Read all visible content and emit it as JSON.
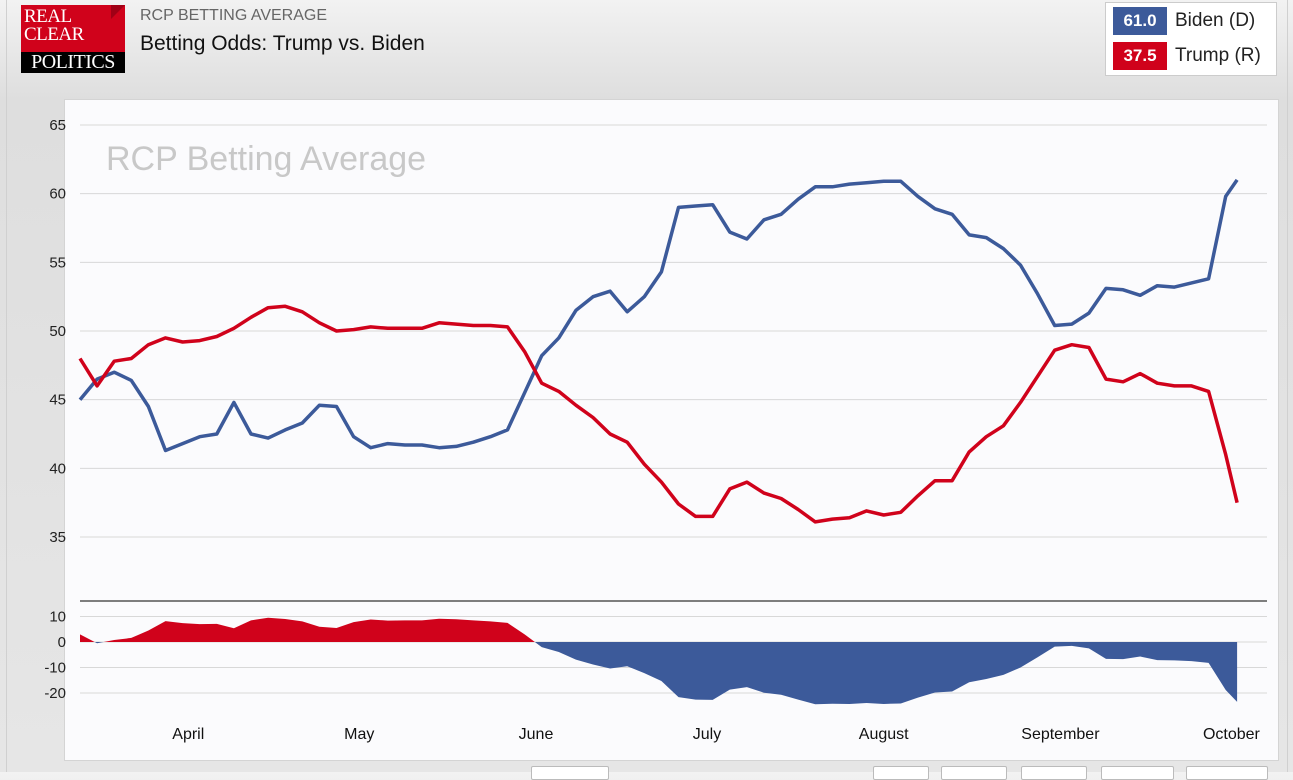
{
  "header": {
    "kicker": "RCP BETTING AVERAGE",
    "title": "Betting Odds: Trump vs. Biden",
    "logo_text": [
      "REAL",
      "CLEAR",
      "POLITICS"
    ]
  },
  "legend": [
    {
      "value": "61.0",
      "name": "Biden (D)",
      "color": "#3c5a9a"
    },
    {
      "value": "37.5",
      "name": "Trump (R)",
      "color": "#d0021b"
    }
  ],
  "colors": {
    "biden": "#3c5a9a",
    "trump": "#d0021b"
  },
  "chart_data": [
    {
      "type": "line",
      "title": "RCP Betting Average",
      "ylim": [
        35,
        65
      ],
      "yticks": [
        "65",
        "60",
        "55",
        "50",
        "45",
        "40",
        "35"
      ],
      "grid": true,
      "xticks": [
        "April",
        "May",
        "June",
        "July",
        "August",
        "September",
        "October"
      ],
      "x": [
        "2020-03-13",
        "2020-03-16",
        "2020-03-19",
        "2020-03-22",
        "2020-03-25",
        "2020-03-28",
        "2020-03-31",
        "2020-04-03",
        "2020-04-06",
        "2020-04-09",
        "2020-04-12",
        "2020-04-15",
        "2020-04-18",
        "2020-04-21",
        "2020-04-24",
        "2020-04-27",
        "2020-04-30",
        "2020-05-03",
        "2020-05-06",
        "2020-05-09",
        "2020-05-12",
        "2020-05-15",
        "2020-05-18",
        "2020-05-21",
        "2020-05-24",
        "2020-05-27",
        "2020-05-30",
        "2020-06-02",
        "2020-06-05",
        "2020-06-08",
        "2020-06-11",
        "2020-06-14",
        "2020-06-17",
        "2020-06-20",
        "2020-06-23",
        "2020-06-26",
        "2020-06-29",
        "2020-07-02",
        "2020-07-05",
        "2020-07-08",
        "2020-07-11",
        "2020-07-14",
        "2020-07-17",
        "2020-07-20",
        "2020-07-23",
        "2020-07-26",
        "2020-07-29",
        "2020-08-01",
        "2020-08-04",
        "2020-08-07",
        "2020-08-10",
        "2020-08-13",
        "2020-08-16",
        "2020-08-19",
        "2020-08-22",
        "2020-08-25",
        "2020-08-28",
        "2020-08-31",
        "2020-09-03",
        "2020-09-06",
        "2020-09-09",
        "2020-09-12",
        "2020-09-15",
        "2020-09-18",
        "2020-09-21",
        "2020-09-24",
        "2020-09-27",
        "2020-09-30",
        "2020-10-02"
      ],
      "series": [
        {
          "name": "Biden (D)",
          "color": "#3c5a9a",
          "values": [
            45,
            46.5,
            47,
            46.4,
            44.5,
            41.3,
            41.8,
            42.3,
            42.5,
            44.8,
            42.5,
            42.2,
            42.8,
            43.3,
            44.6,
            44.5,
            42.3,
            41.5,
            41.8,
            41.7,
            41.7,
            41.5,
            41.6,
            41.9,
            42.3,
            42.8,
            45.5,
            48.2,
            49.5,
            51.5,
            52.5,
            52.9,
            51.4,
            52.5,
            54.3,
            59,
            59.1,
            59.2,
            57.2,
            56.7,
            58.1,
            58.5,
            59.6,
            60.5,
            60.5,
            60.7,
            60.8,
            60.9,
            60.9,
            59.8,
            58.9,
            58.5,
            57,
            56.8,
            56,
            54.8,
            52.7,
            50.4,
            50.5,
            51.3,
            53.1,
            53,
            52.6,
            53.3,
            53.2,
            53.5,
            53.8,
            59.8,
            61.0
          ]
        },
        {
          "name": "Trump (R)",
          "color": "#d0021b",
          "values": [
            48,
            46,
            47.8,
            48,
            49,
            49.5,
            49.2,
            49.3,
            49.6,
            50.2,
            51,
            51.7,
            51.8,
            51.4,
            50.6,
            50,
            50.1,
            50.3,
            50.2,
            50.2,
            50.2,
            50.6,
            50.5,
            50.4,
            50.4,
            50.3,
            48.5,
            46.2,
            45.6,
            44.6,
            43.7,
            42.5,
            41.9,
            40.3,
            39,
            37.4,
            36.5,
            36.5,
            38.5,
            39,
            38.2,
            37.8,
            37,
            36.1,
            36.3,
            36.4,
            36.9,
            36.6,
            36.8,
            38,
            39.1,
            39.1,
            41.2,
            42.3,
            43.1,
            44.8,
            46.7,
            48.6,
            49,
            48.8,
            46.5,
            46.3,
            46.9,
            46.2,
            46,
            46,
            45.6,
            41,
            37.5
          ]
        }
      ]
    },
    {
      "type": "area",
      "ylim": [
        -22,
        12
      ],
      "yticks": [
        "10",
        "0",
        "-10",
        "-20"
      ],
      "grid": true,
      "series_definition": "Trump (R) minus Biden (D)"
    }
  ]
}
